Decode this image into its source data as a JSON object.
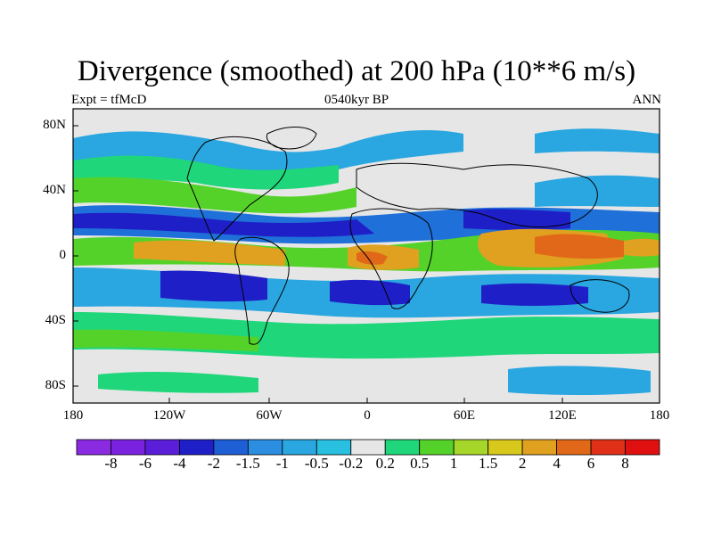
{
  "title": "Divergence (smoothed) at 200 hPa (10**6 m/s)",
  "subtitle": {
    "left": "Expt = tfMcD",
    "center": "0540kyr BP",
    "right": "ANN"
  },
  "lat_labels": [
    "80N",
    "40N",
    "0",
    "40S",
    "80S"
  ],
  "lon_labels": [
    "180",
    "120W",
    "60W",
    "0",
    "60E",
    "120E",
    "180"
  ],
  "colorbar": {
    "labels": [
      "-8",
      "-6",
      "-4",
      "-2",
      "-1.5",
      "-1",
      "-0.5",
      "-0.2",
      "0.2",
      "0.5",
      "1",
      "1.5",
      "2",
      "4",
      "6",
      "8"
    ],
    "colors": [
      "#8a2be2",
      "#7a22e0",
      "#5a1ed8",
      "#1f1fc8",
      "#1f5fd6",
      "#2b8ee0",
      "#2aa6e0",
      "#28bfe0",
      "#e6e6e6",
      "#1fd67a",
      "#55d22a",
      "#a6d62a",
      "#d8c81c",
      "#e0a020",
      "#e06818",
      "#e03018",
      "#e01010"
    ]
  },
  "colors": {
    "strong_neg": "#1f1fc8",
    "mid_neg": "#1f70d8",
    "weak_neg": "#2aa6e0",
    "neutral": "#e6e6e6",
    "weak_pos": "#1fd67a",
    "mid_pos": "#55d22a",
    "strong_pos": "#e0a020",
    "max_pos": "#e03018"
  }
}
